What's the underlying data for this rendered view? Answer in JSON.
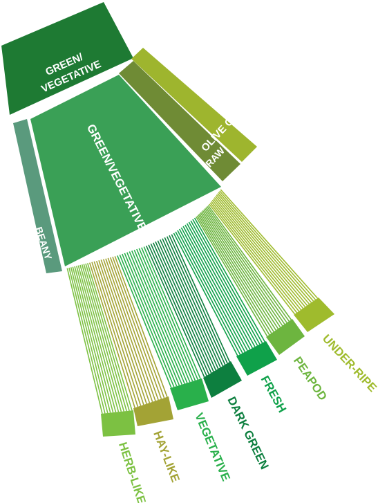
{
  "diagram": {
    "center": {
      "label_line1": "GREEN/",
      "label_line2": "VEGETATIVE",
      "color": "#1e7a33"
    },
    "tier2": [
      {
        "id": "beany",
        "label": "BEANY",
        "color": "#5a9a7d"
      },
      {
        "id": "green-vegetative",
        "label": "GREEN/VEGETATIVE",
        "color": "#3aa056"
      },
      {
        "id": "raw",
        "label": "RAW",
        "color": "#6f8b35"
      },
      {
        "id": "olive-oil",
        "label": "OLIVE OIL",
        "color": "#9eb52e"
      }
    ],
    "tier3": [
      {
        "id": "herb-like",
        "label": "HERB-LIKE",
        "color": "#7cc142"
      },
      {
        "id": "hay-like",
        "label": "HAY-LIKE",
        "color": "#a3a335"
      },
      {
        "id": "vegetative",
        "label": "VEGETATIVE",
        "color": "#29b04b"
      },
      {
        "id": "dark-green",
        "label": "DARK GREEN",
        "color": "#0d7f3f"
      },
      {
        "id": "fresh",
        "label": "FRESH",
        "color": "#0fa14a"
      },
      {
        "id": "peapod",
        "label": "PEAPOD",
        "color": "#6db53f"
      },
      {
        "id": "under-ripe",
        "label": "UNDER-RIPE",
        "color": "#9fbb2d"
      }
    ]
  }
}
